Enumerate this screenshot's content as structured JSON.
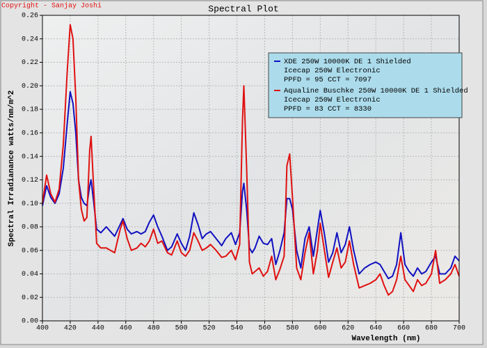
{
  "chart_data": {
    "type": "line",
    "title": "Spectral Plot",
    "copyright": "Copyright - Sanjay Joshi",
    "x_label": "Wavelength (nm)",
    "y_label": "Spectral Irradianance watts/nm/m^2",
    "x": [
      400,
      403,
      406,
      409,
      412,
      415,
      418,
      420,
      422,
      424,
      426,
      428,
      430,
      432,
      434,
      435,
      437,
      439,
      442,
      446,
      449,
      452,
      456,
      458,
      461,
      464,
      468,
      471,
      474,
      477,
      480,
      483,
      486,
      490,
      493,
      497,
      500,
      503,
      506,
      509,
      512,
      515,
      518,
      521,
      525,
      529,
      532,
      536,
      539,
      542,
      544,
      545,
      547,
      549,
      551,
      553,
      556,
      559,
      562,
      565,
      568,
      571,
      574,
      576,
      578,
      580,
      583,
      586,
      589,
      592,
      595,
      598,
      600,
      603,
      606,
      609,
      612,
      615,
      618,
      621,
      624,
      628,
      632,
      636,
      640,
      643,
      646,
      649,
      652,
      655,
      658,
      661,
      664,
      667,
      670,
      673,
      676,
      680,
      683,
      686,
      690,
      694,
      697,
      700
    ],
    "series": [
      {
        "name": "XDE 250W 10000K DE 1 Shielded",
        "details": [
          "Icecap 250W Electronic",
          "PPFD = 95  CCT = 7097"
        ],
        "color": "#1010c0",
        "values": [
          0.098,
          0.115,
          0.105,
          0.1,
          0.108,
          0.13,
          0.17,
          0.195,
          0.185,
          0.16,
          0.12,
          0.105,
          0.1,
          0.098,
          0.115,
          0.12,
          0.1,
          0.078,
          0.075,
          0.08,
          0.076,
          0.072,
          0.082,
          0.087,
          0.078,
          0.074,
          0.076,
          0.074,
          0.076,
          0.084,
          0.09,
          0.08,
          0.072,
          0.06,
          0.063,
          0.074,
          0.066,
          0.06,
          0.072,
          0.092,
          0.082,
          0.07,
          0.074,
          0.076,
          0.07,
          0.064,
          0.07,
          0.075,
          0.065,
          0.075,
          0.11,
          0.117,
          0.095,
          0.062,
          0.058,
          0.062,
          0.072,
          0.066,
          0.065,
          0.07,
          0.048,
          0.06,
          0.075,
          0.104,
          0.104,
          0.095,
          0.06,
          0.045,
          0.07,
          0.08,
          0.055,
          0.078,
          0.094,
          0.074,
          0.05,
          0.058,
          0.075,
          0.058,
          0.065,
          0.08,
          0.06,
          0.04,
          0.045,
          0.048,
          0.05,
          0.048,
          0.042,
          0.036,
          0.038,
          0.048,
          0.075,
          0.048,
          0.042,
          0.038,
          0.045,
          0.04,
          0.042,
          0.05,
          0.055,
          0.04,
          0.04,
          0.045,
          0.055,
          0.051
        ]
      },
      {
        "name": "Aqualine Buschke 250W 10000K DE 1 Shielded",
        "details": [
          "Icecap 250W Electronic",
          "PPFD = 83  CCT = 8330"
        ],
        "color": "#e01010",
        "values": [
          0.1,
          0.124,
          0.108,
          0.101,
          0.112,
          0.15,
          0.215,
          0.252,
          0.24,
          0.19,
          0.12,
          0.095,
          0.085,
          0.088,
          0.145,
          0.157,
          0.11,
          0.066,
          0.062,
          0.062,
          0.06,
          0.058,
          0.078,
          0.085,
          0.07,
          0.06,
          0.062,
          0.066,
          0.063,
          0.068,
          0.078,
          0.066,
          0.068,
          0.058,
          0.056,
          0.068,
          0.058,
          0.055,
          0.06,
          0.075,
          0.068,
          0.06,
          0.062,
          0.065,
          0.06,
          0.054,
          0.055,
          0.06,
          0.052,
          0.065,
          0.17,
          0.2,
          0.13,
          0.05,
          0.04,
          0.042,
          0.045,
          0.038,
          0.042,
          0.055,
          0.035,
          0.044,
          0.055,
          0.132,
          0.142,
          0.105,
          0.045,
          0.035,
          0.058,
          0.075,
          0.04,
          0.06,
          0.083,
          0.06,
          0.037,
          0.05,
          0.062,
          0.045,
          0.05,
          0.068,
          0.048,
          0.028,
          0.03,
          0.032,
          0.035,
          0.04,
          0.03,
          0.022,
          0.025,
          0.035,
          0.055,
          0.035,
          0.03,
          0.025,
          0.035,
          0.03,
          0.032,
          0.04,
          0.06,
          0.032,
          0.035,
          0.04,
          0.048,
          0.038
        ]
      }
    ],
    "xlim": [
      400,
      700
    ],
    "ylim": [
      0,
      0.26
    ],
    "xticks": [
      400,
      420,
      440,
      460,
      480,
      500,
      520,
      540,
      560,
      580,
      600,
      620,
      640,
      660,
      680,
      700
    ],
    "yticks": [
      {
        "value": 0,
        "label": "0.00"
      },
      0.02,
      0.04,
      0.06,
      0.08,
      {
        "value": 0.1,
        "label": "0.10"
      },
      0.12,
      0.14,
      0.16,
      0.18,
      {
        "value": 0.2,
        "label": "0.20"
      },
      0.22,
      0.24,
      0.26
    ],
    "grid": true,
    "legend": "upper right"
  }
}
